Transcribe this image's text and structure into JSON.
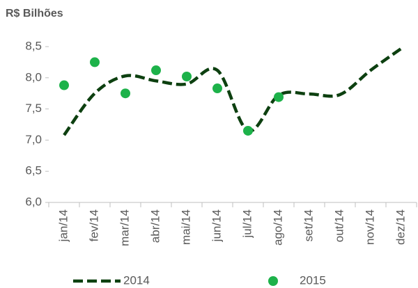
{
  "chart_data": {
    "type": "line",
    "ylabel": "R$ Bilhões",
    "categories": [
      "jan/14",
      "fev/14",
      "mar/14",
      "abr/14",
      "mai/14",
      "jun/14",
      "jul/14",
      "ago/14",
      "set/14",
      "out/14",
      "nov/14",
      "dez/14"
    ],
    "series": [
      {
        "name": "2014",
        "color": "#0d4010",
        "style": "dashed-line",
        "values": [
          7.08,
          7.75,
          8.03,
          7.95,
          7.9,
          8.12,
          7.15,
          7.72,
          7.74,
          7.73,
          8.12,
          8.47
        ]
      },
      {
        "name": "2015",
        "color": "#1db24a",
        "style": "markers",
        "values": [
          7.88,
          8.25,
          7.75,
          8.12,
          8.02,
          7.83,
          7.15,
          7.69,
          null,
          null,
          null,
          null
        ]
      }
    ],
    "ylim": [
      6,
      8.5
    ],
    "yticks": [
      {
        "value": 6,
        "label": "6,0"
      },
      {
        "value": 6.5,
        "label": "6,5"
      },
      {
        "value": 7,
        "label": "7,0"
      },
      {
        "value": 7.5,
        "label": "7,5"
      },
      {
        "value": 8,
        "label": "8,0"
      },
      {
        "value": 8.5,
        "label": "8,5"
      }
    ],
    "grid": false,
    "legend": "bottom"
  }
}
